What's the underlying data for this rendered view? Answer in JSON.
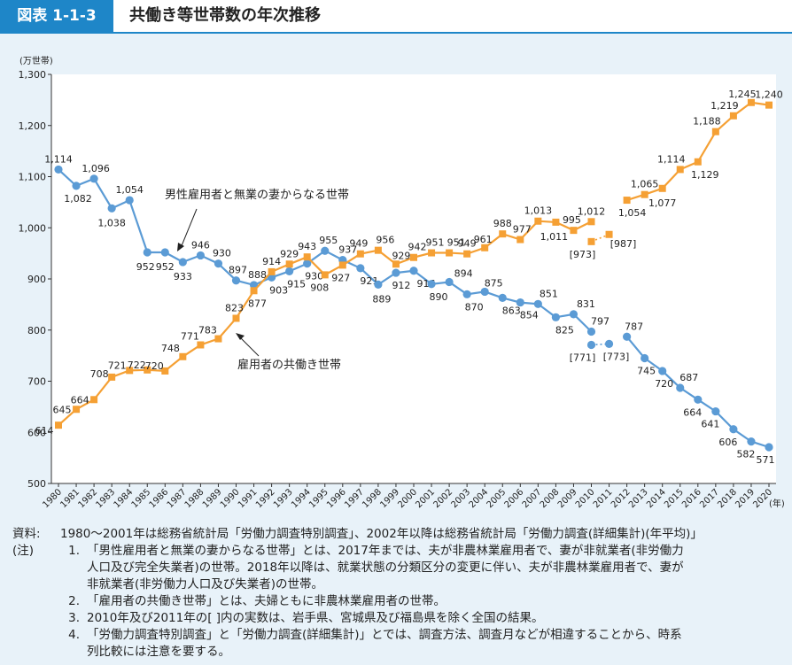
{
  "header": {
    "figure_label": "図表 1-1-3",
    "title": "共働き等世帯数の年次推移"
  },
  "chart_data": {
    "type": "line",
    "ylabel": "(万世帯)",
    "xlabel": "(年)",
    "ylim": [
      500,
      1300
    ],
    "yticks": [
      "500",
      "600",
      "700",
      "800",
      "900",
      "1,000",
      "1,100",
      "1,200",
      "1,300"
    ],
    "x": [
      "1980",
      "1981",
      "1982",
      "1983",
      "1984",
      "1985",
      "1986",
      "1987",
      "1988",
      "1989",
      "1990",
      "1991",
      "1992",
      "1993",
      "1994",
      "1995",
      "1996",
      "1997",
      "1998",
      "1999",
      "2000",
      "2001",
      "2002",
      "2003",
      "2004",
      "2005",
      "2006",
      "2007",
      "2008",
      "2009",
      "2010",
      "2011",
      "2012",
      "2013",
      "2014",
      "2015",
      "2016",
      "2017",
      "2018",
      "2019",
      "2020"
    ],
    "series": [
      {
        "name": "男性雇用者と無業の妻からなる世帯",
        "color": "#5b9bd5",
        "values": [
          1114,
          1082,
          1096,
          1038,
          1054,
          952,
          952,
          933,
          946,
          930,
          897,
          888,
          903,
          915,
          930,
          955,
          937,
          921,
          889,
          912,
          916,
          890,
          894,
          870,
          875,
          863,
          854,
          851,
          825,
          831,
          797,
          null,
          787,
          745,
          720,
          687,
          664,
          641,
          606,
          582,
          571
        ],
        "bracket": {
          "x": [
            "2010",
            "2011"
          ],
          "values": [
            771,
            773
          ],
          "labels": [
            "[771]",
            "[773]"
          ]
        }
      },
      {
        "name": "雇用者の共働き世帯",
        "color": "#f5a034",
        "values": [
          614,
          645,
          664,
          708,
          721,
          722,
          720,
          748,
          771,
          783,
          823,
          877,
          914,
          929,
          943,
          908,
          927,
          949,
          956,
          929,
          942,
          951,
          951,
          949,
          961,
          988,
          977,
          1013,
          1011,
          995,
          1012,
          null,
          1054,
          1065,
          1077,
          1114,
          1129,
          1188,
          1219,
          1245,
          1240
        ],
        "bracket": {
          "x": [
            "2010",
            "2011"
          ],
          "values": [
            973,
            987
          ],
          "labels": [
            "[973]",
            "[987]"
          ]
        }
      }
    ],
    "annotations": [
      {
        "text": "男性雇用者と無業の妻からなる世帯"
      },
      {
        "text": "雇用者の共働き世帯"
      }
    ],
    "grid": false
  },
  "notes": {
    "source_label": "資料:",
    "source_text": "1980〜2001年は総務省統計局「労働力調査特別調査」、2002年以降は総務省統計局「労働力調査(詳細集計)(年平均)」",
    "note_label": "(注)",
    "items": [
      {
        "num": "1.",
        "lines": [
          "「男性雇用者と無業の妻からなる世帯」とは、2017年までは、夫が非農林業雇用者で、妻が非就業者(非労働力",
          "人口及び完全失業者)の世帯。2018年以降は、就業状態の分類区分の変更に伴い、夫が非農林業雇用者で、妻が",
          "非就業者(非労働力人口及び失業者)の世帯。"
        ]
      },
      {
        "num": "2.",
        "lines": [
          "「雇用者の共働き世帯」とは、夫婦ともに非農林業雇用者の世帯。"
        ]
      },
      {
        "num": "3.",
        "lines": [
          "2010年及び2011年の[ ]内の実数は、岩手県、宮城県及び福島県を除く全国の結果。"
        ]
      },
      {
        "num": "4.",
        "lines": [
          "「労働力調査特別調査」と「労働力調査(詳細集計)」とでは、調査方法、調査月などが相違することから、時系",
          "列比較には注意を要する。"
        ]
      }
    ]
  }
}
